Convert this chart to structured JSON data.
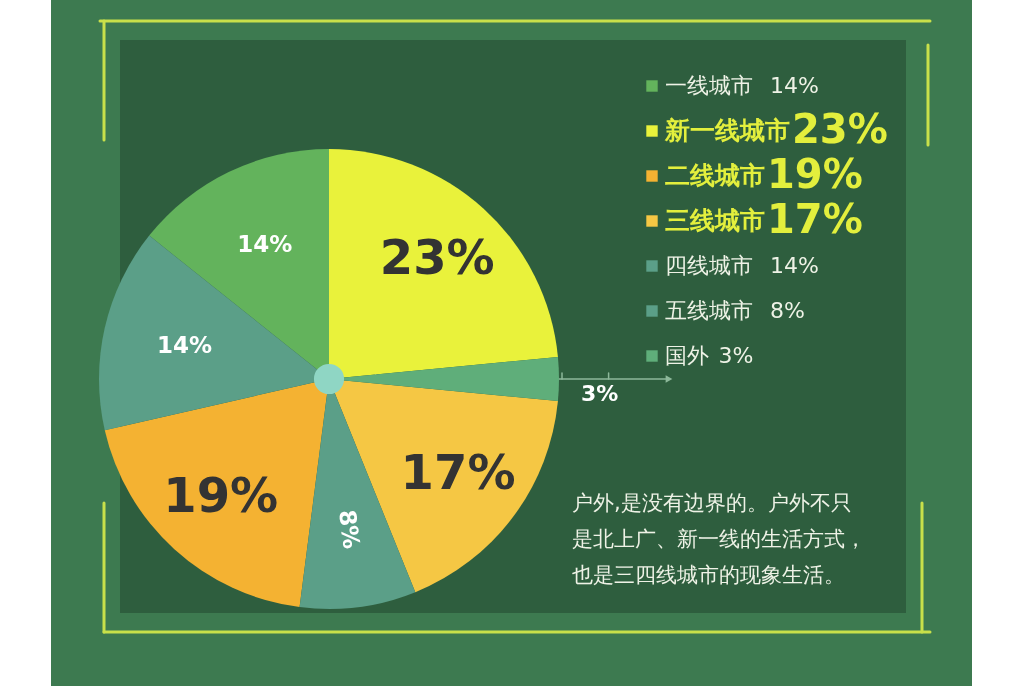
{
  "chart_data": {
    "type": "pie",
    "categories": [
      "一线城市",
      "新一线城市",
      "二线城市",
      "三线城市",
      "四线城市",
      "五线城市",
      "国外"
    ],
    "values": [
      14,
      23,
      19,
      17,
      14,
      8,
      3
    ],
    "colors": [
      "#63b35c",
      "#e9f23b",
      "#f4b232",
      "#f5c744",
      "#5b9f88",
      "#5b9f88",
      "#5fae7a"
    ],
    "value_labels": [
      "14%",
      "23%",
      "19%",
      "17%",
      "14%",
      "8%",
      "3%"
    ],
    "legend": "right",
    "annotations": [
      "户外,是没有边界的。户外不只是北上广、新一线的生活方式，也是三四线城市的现象生活。"
    ]
  }
}
